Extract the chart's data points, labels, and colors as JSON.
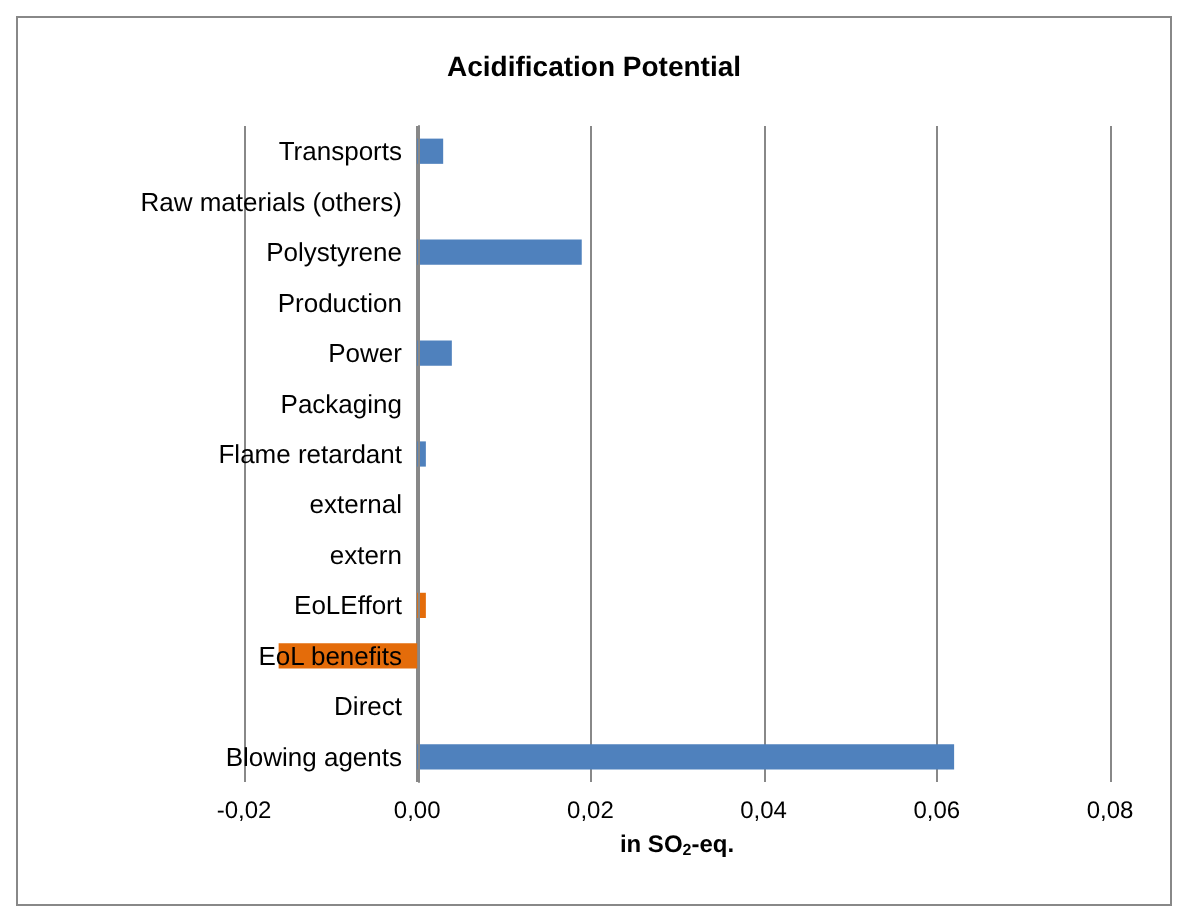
{
  "chart_data": {
    "type": "bar",
    "orientation": "horizontal",
    "title": "Acidification Potential",
    "xlabel": "in SO$_{2}$-eq.",
    "categories": [
      "Transports",
      "Raw materials (others)",
      "Polystyrene",
      "Production",
      "Power",
      "Packaging",
      "Flame retardant",
      "external",
      "extern",
      "EoLEffort",
      "EoL benefits",
      "Direct",
      "Blowing agents"
    ],
    "values": [
      0.003,
      0,
      0.019,
      0,
      0.004,
      0,
      0.001,
      0,
      0,
      0.001,
      -0.016,
      0,
      0.062
    ],
    "colors": [
      "#4f81bd",
      "#4f81bd",
      "#4f81bd",
      "#4f81bd",
      "#4f81bd",
      "#4f81bd",
      "#4f81bd",
      "#4f81bd",
      "#4f81bd",
      "#e46c0a",
      "#e46c0a",
      "#4f81bd",
      "#4f81bd"
    ],
    "xlim": [
      -0.02,
      0.08
    ],
    "xticks": [
      {
        "value": -0.02,
        "label": "-0,02"
      },
      {
        "value": 0,
        "label": "0,00"
      },
      {
        "value": 0.02,
        "label": "0,02"
      },
      {
        "value": 0.04,
        "label": "0,04"
      },
      {
        "value": 0.06,
        "label": "0,06"
      },
      {
        "value": 0.08,
        "label": "0,08"
      }
    ],
    "grid": "x"
  }
}
